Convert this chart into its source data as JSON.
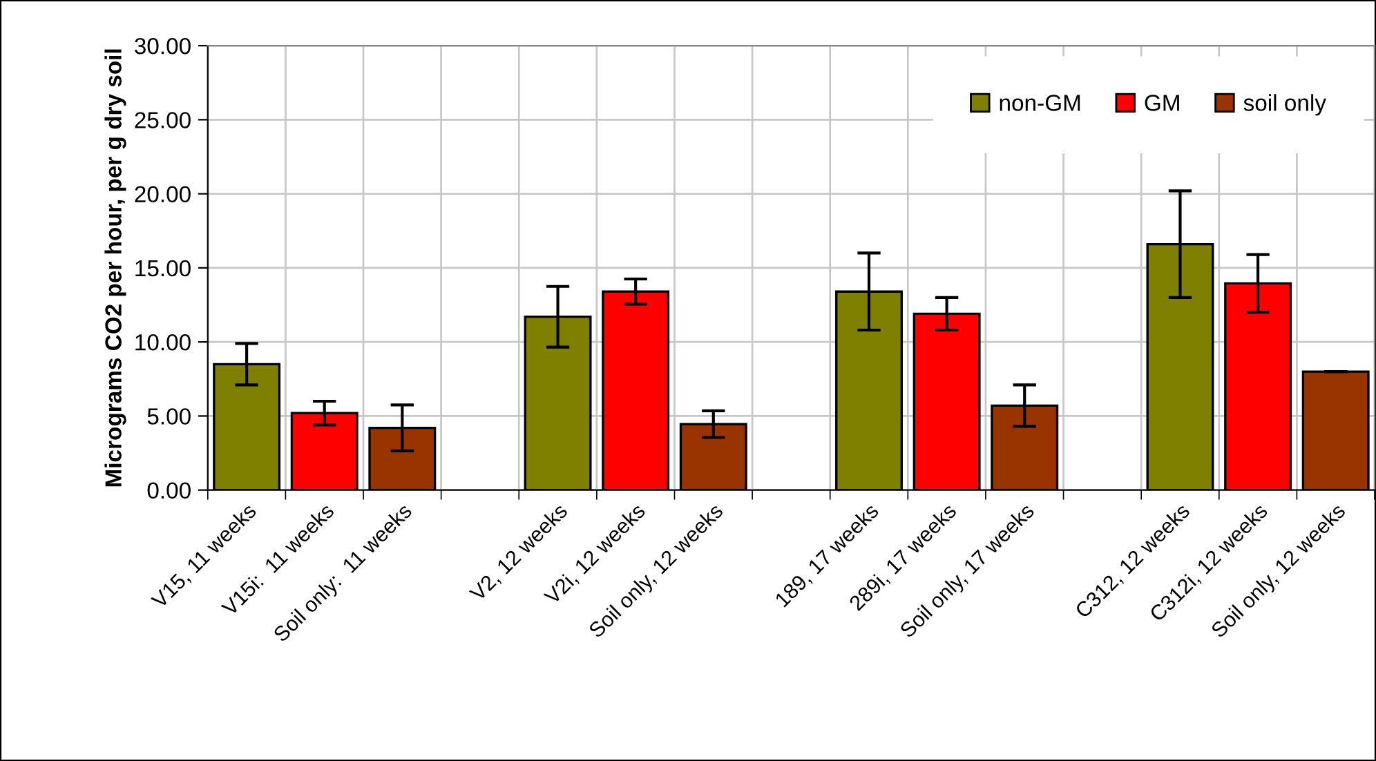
{
  "chart_data": {
    "type": "bar",
    "stacked": true,
    "ylabel": "Micrograms CO2 per hour, per g dry soil",
    "categories": [
      "V15, 11 weeks",
      "V15i:  11 weeks",
      "Soil only:  11 weeks",
      null,
      "V2, 12 weeks",
      "V2i, 12 weeks",
      "Soil only, 12 weeks",
      null,
      "189, 17 weeks",
      "289i, 17 weeks",
      "Soil only, 17 weeks",
      null,
      "C312, 12 weeks",
      "C312i, 12 weeks",
      "Soil only, 12 weeks"
    ],
    "series": [
      {
        "name": "non-GM",
        "color": "#808000",
        "values": [
          8.5,
          null,
          null,
          null,
          11.7,
          null,
          null,
          null,
          13.4,
          null,
          null,
          null,
          16.6,
          null,
          null
        ],
        "errors": [
          1.4,
          null,
          null,
          null,
          2.05,
          null,
          null,
          null,
          2.6,
          null,
          null,
          null,
          3.6,
          null,
          null
        ]
      },
      {
        "name": "GM",
        "color": "#ff0000",
        "values": [
          null,
          5.2,
          null,
          null,
          null,
          13.4,
          null,
          null,
          null,
          11.9,
          null,
          null,
          null,
          13.95,
          null
        ],
        "errors": [
          null,
          0.8,
          null,
          null,
          null,
          0.85,
          null,
          null,
          null,
          1.1,
          null,
          null,
          null,
          1.95,
          null
        ]
      },
      {
        "name": "soil only",
        "color": "#993300",
        "values": [
          null,
          null,
          4.2,
          null,
          null,
          null,
          4.45,
          null,
          null,
          null,
          5.7,
          null,
          null,
          null,
          8.0
        ],
        "errors": [
          null,
          null,
          1.55,
          null,
          null,
          null,
          0.9,
          null,
          null,
          null,
          1.4,
          null,
          null,
          null,
          0
        ]
      }
    ],
    "ylim": [
      0,
      30
    ],
    "yticks": [
      {
        "value": 0,
        "label": "0.00"
      },
      {
        "value": 5,
        "label": "5.00"
      },
      {
        "value": 10,
        "label": "10.00"
      },
      {
        "value": 15,
        "label": "15.00"
      },
      {
        "value": 20,
        "label": "20.00"
      },
      {
        "value": 25,
        "label": "25.00"
      },
      {
        "value": 30,
        "label": "30.00"
      }
    ],
    "grid": true,
    "legend": "top right"
  }
}
